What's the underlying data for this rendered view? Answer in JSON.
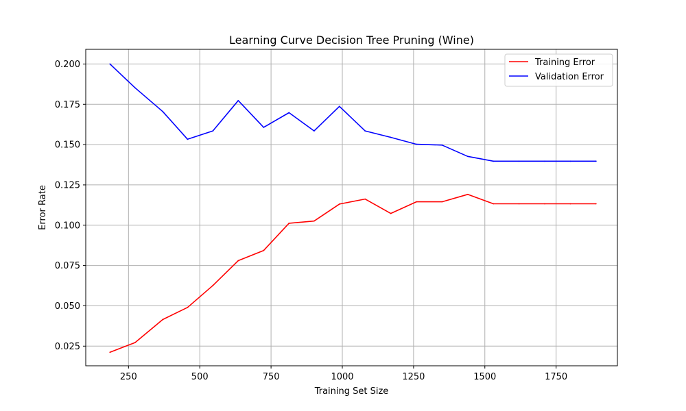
{
  "chart_data": {
    "type": "line",
    "title": "Learning Curve Decision Tree Pruning (Wine)",
    "xlabel": "Training Set Size",
    "ylabel": "Error Rate",
    "xlim": [
      100,
      1965
    ],
    "ylim": [
      0.0128,
      0.2091
    ],
    "xticks": [
      250,
      500,
      750,
      1000,
      1250,
      1500,
      1750
    ],
    "yticks": [
      0.025,
      0.05,
      0.075,
      0.1,
      0.125,
      0.15,
      0.175,
      0.2
    ],
    "xtick_labels": [
      "250",
      "500",
      "750",
      "1000",
      "1250",
      "1500",
      "1750"
    ],
    "ytick_labels": [
      "0.025",
      "0.050",
      "0.075",
      "0.100",
      "0.125",
      "0.150",
      "0.175",
      "0.200"
    ],
    "grid": true,
    "legend_position": "top-right",
    "x": [
      185,
      273,
      370,
      457,
      546,
      635,
      724,
      813,
      901,
      990,
      1080,
      1170,
      1260,
      1350,
      1440,
      1530,
      1620,
      1710,
      1800,
      1890
    ],
    "series": [
      {
        "name": "Training Error",
        "color": "#ff0000",
        "values": [
          0.0212,
          0.0272,
          0.0415,
          0.049,
          0.0626,
          0.078,
          0.0843,
          0.1012,
          0.1026,
          0.1131,
          0.1162,
          0.1073,
          0.1145,
          0.1145,
          0.1191,
          0.1133,
          0.1133,
          0.1133,
          0.1133,
          0.1133
        ]
      },
      {
        "name": "Validation Error",
        "color": "#0000ff",
        "values": [
          0.2,
          0.1852,
          0.1705,
          0.1533,
          0.1585,
          0.1773,
          0.1607,
          0.1698,
          0.1585,
          0.1737,
          0.1585,
          0.1545,
          0.1502,
          0.1497,
          0.1427,
          0.1397,
          0.1397,
          0.1397,
          0.1397,
          0.1397
        ]
      }
    ]
  }
}
